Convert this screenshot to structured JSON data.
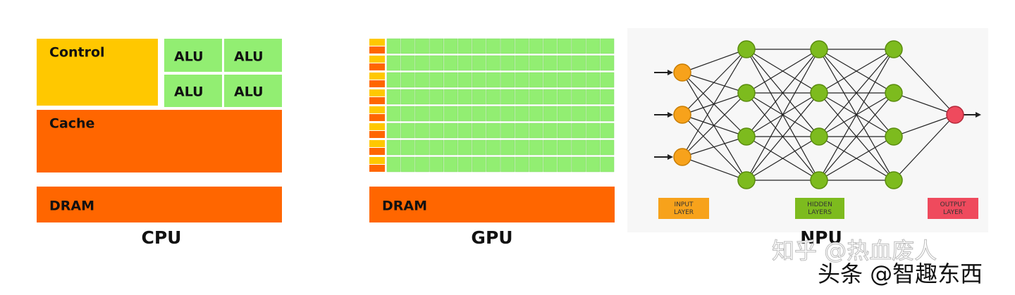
{
  "cpu": {
    "control": "Control",
    "alus": [
      "ALU",
      "ALU",
      "ALU",
      "ALU"
    ],
    "cache": "Cache",
    "dram": "DRAM",
    "label": "CPU"
  },
  "gpu": {
    "dram": "DRAM",
    "label": "GPU"
  },
  "npu": {
    "legend": [
      [
        "INPUT",
        "LAYER"
      ],
      [
        "HIDDEN",
        "LAYERS"
      ],
      [
        "OUTPUT",
        "LAYER"
      ]
    ],
    "label": "NPU"
  },
  "watermarks": [
    "知乎 @热血废人",
    "头条 @智趣东西"
  ]
}
